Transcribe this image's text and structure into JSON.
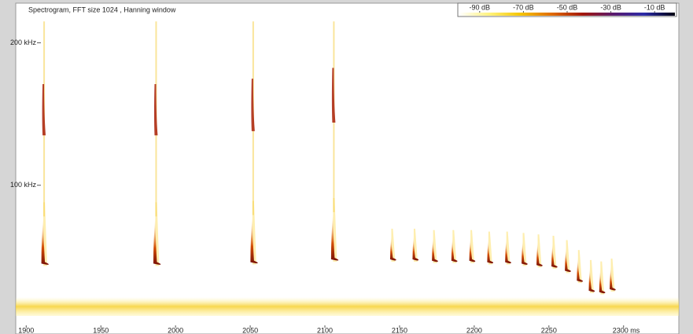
{
  "chart_data": {
    "type": "spectrogram",
    "title": "Spectrogram, FFT size 1024 , Hanning window",
    "x": [
      1912,
      1987,
      2052,
      2106,
      2145,
      2160,
      2173,
      2186,
      2198,
      2210,
      2222,
      2233,
      2243,
      2253,
      2262,
      2270,
      2278,
      2285,
      2292
    ],
    "values": [
      45,
      45,
      46,
      48,
      48,
      48,
      47,
      47,
      47,
      46,
      46,
      45,
      44,
      43,
      40,
      33,
      26,
      25,
      27
    ],
    "color": "#8b1a0a",
    "xlim": [
      1893,
      2337
    ],
    "xticks": [
      1900,
      1950,
      2000,
      2050,
      2100,
      2150,
      2200,
      2250,
      {
        "value": 2300,
        "label": "2300 ms"
      }
    ],
    "ylim": [
      0,
      219
    ],
    "yticks": [
      {
        "value": 100,
        "label": "100 kHz"
      },
      {
        "value": 200,
        "label": "200 kHz"
      }
    ],
    "colorbar_ticks": [
      {
        "value": -90,
        "label": "-90 dB"
      },
      {
        "value": -70,
        "label": "-70 dB"
      },
      {
        "value": -50,
        "label": "-50 dB"
      },
      {
        "value": -30,
        "label": "-30 dB"
      },
      {
        "value": -10,
        "label": "-10 dB"
      }
    ],
    "colorbar_lim": [
      -100,
      0
    ],
    "colorscale": [
      "#ffffff",
      "#fff27a",
      "#f5c400",
      "#e06a00",
      "#a3160b",
      "#5a1a6e",
      "#2b2ba8",
      "#000010"
    ]
  }
}
